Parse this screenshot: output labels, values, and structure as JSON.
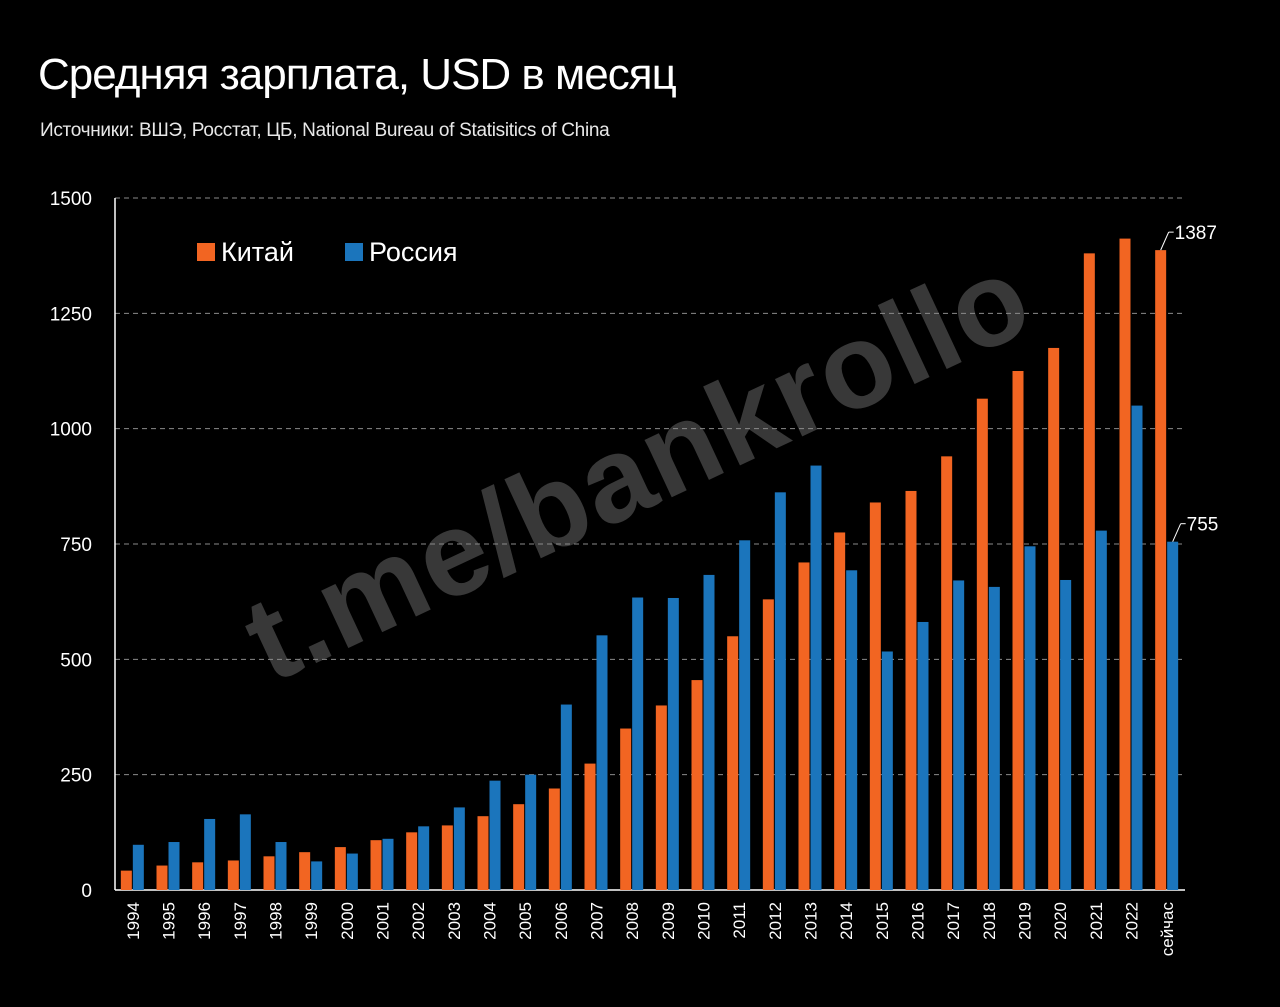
{
  "header": {
    "title": "Средняя зарплата, USD в месяц",
    "subtitle": "Источники: ВШЭ, Росстат, ЦБ, National Bureau of Statisitics of China"
  },
  "watermark": "t.me/bankrollo",
  "colors": {
    "china": "#F26522",
    "russia": "#1B75BC",
    "grid": "#8a8a8a",
    "background": "#000000"
  },
  "chart_data": {
    "type": "bar",
    "categories": [
      "1994",
      "1995",
      "1996",
      "1997",
      "1998",
      "1999",
      "2000",
      "2001",
      "2002",
      "2003",
      "2004",
      "2005",
      "2006",
      "2007",
      "2008",
      "2009",
      "2010",
      "2011",
      "2012",
      "2013",
      "2014",
      "2015",
      "2016",
      "2017",
      "2018",
      "2019",
      "2020",
      "2021",
      "2022",
      "сейчас"
    ],
    "series": [
      {
        "name": "Китай",
        "values": [
          42,
          53,
          60,
          64,
          73,
          82,
          93,
          108,
          125,
          140,
          160,
          186,
          220,
          274,
          350,
          400,
          455,
          550,
          630,
          710,
          775,
          840,
          865,
          940,
          1065,
          1125,
          1175,
          1380,
          1412,
          1387
        ]
      },
      {
        "name": "Россия",
        "values": [
          98,
          104,
          154,
          164,
          104,
          62,
          79,
          111,
          138,
          179,
          237,
          250,
          402,
          552,
          634,
          633,
          683,
          758,
          862,
          920,
          693,
          517,
          581,
          671,
          657,
          745,
          672,
          779,
          1050,
          755
        ]
      }
    ],
    "ylim": [
      0,
      1500
    ],
    "yticks": [
      0,
      250,
      500,
      750,
      1000,
      1250,
      1500
    ],
    "grid": true,
    "legend_placement": "top-left",
    "annotations": [
      {
        "series": "Китай",
        "category": "сейчас",
        "text": "1387"
      },
      {
        "series": "Россия",
        "category": "сейчас",
        "text": "755"
      }
    ]
  }
}
